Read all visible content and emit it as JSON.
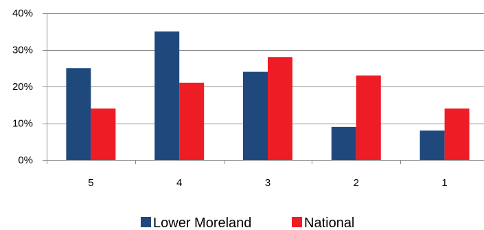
{
  "chart_data": {
    "type": "bar",
    "categories": [
      "5",
      "4",
      "3",
      "2",
      "1"
    ],
    "series": [
      {
        "name": "Lower Moreland",
        "values": [
          25,
          35,
          24,
          9,
          8
        ],
        "color": "#1f497d"
      },
      {
        "name": "National",
        "values": [
          14,
          21,
          28,
          23,
          14
        ],
        "color": "#ee1c25"
      }
    ],
    "y_ticks": [
      "0%",
      "10%",
      "20%",
      "30%",
      "40%"
    ],
    "ylim": [
      0,
      40
    ],
    "grid": true,
    "legend_position": "bottom",
    "title": "",
    "xlabel": "",
    "ylabel": ""
  }
}
